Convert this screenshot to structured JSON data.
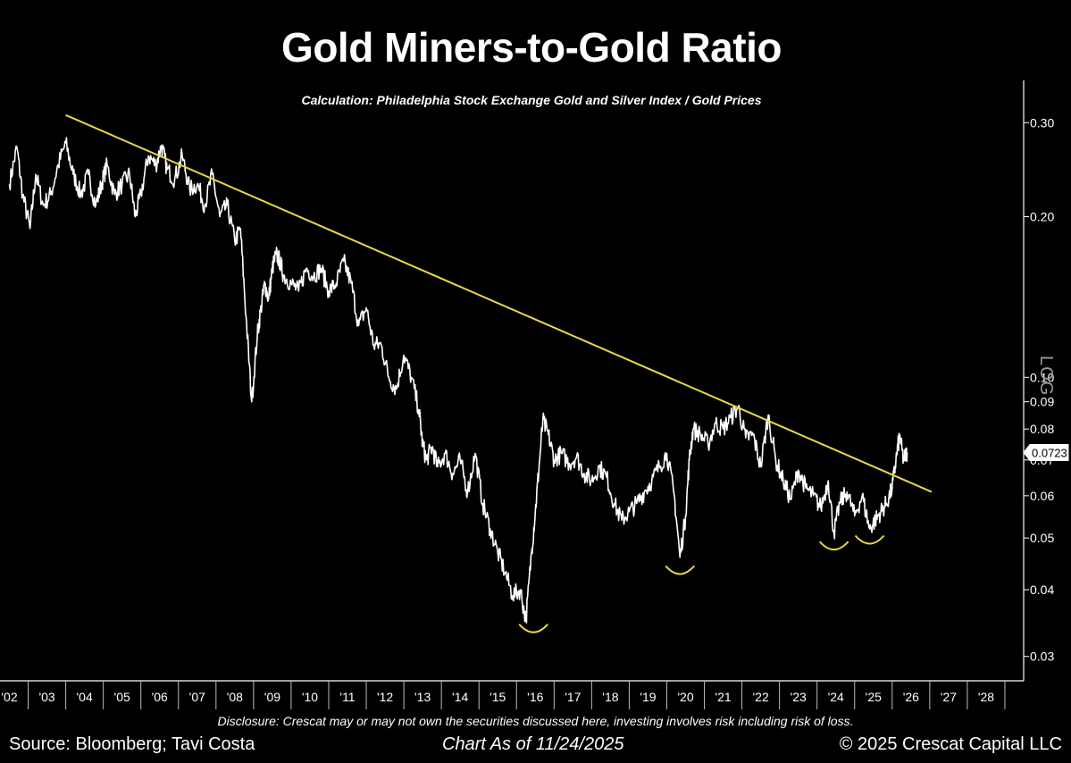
{
  "colors": {
    "background": "#000000",
    "series": "#ffffff",
    "trendline": "#e8d84a",
    "bottom_marks": "#e8d84a",
    "axis": "#ffffff"
  },
  "footer": {
    "disclosure": "Disclosure: Crescat may or may not own the securities discussed here, investing involves risk including risk of loss.",
    "source": "Source: Bloomberg; Tavi Costa",
    "as_of": "Chart As of 11/24/2025",
    "copyright": "© 2025 Crescat Capital LLC"
  },
  "chart_data": {
    "type": "line",
    "title": "Gold Miners-to-Gold Ratio",
    "subtitle": "Calculation: Philadelphia Stock Exchange Gold and Silver Index / Gold Prices",
    "y_scale": "log",
    "y_scale_label": "LOG",
    "y_axis_side": "right",
    "ylim": [
      0.027,
      0.36
    ],
    "xlim": [
      2001.75,
      2029.0
    ],
    "x_tick_labels": [
      "'02",
      "'03",
      "'04",
      "'05",
      "'06",
      "'07",
      "'08",
      "'09",
      "'10",
      "'11",
      "'12",
      "'13",
      "'14",
      "'15",
      "'16",
      "'17",
      "'18",
      "'19",
      "'20",
      "'21",
      "'22",
      "'23",
      "'24",
      "'25",
      "'26",
      "'27",
      "'28"
    ],
    "x_tick_years": [
      2002,
      2003,
      2004,
      2005,
      2006,
      2007,
      2008,
      2009,
      2010,
      2011,
      2012,
      2013,
      2014,
      2015,
      2016,
      2017,
      2018,
      2019,
      2020,
      2021,
      2022,
      2023,
      2024,
      2025,
      2026,
      2027,
      2028
    ],
    "y_ticks": [
      {
        "value": 0.3,
        "label": "0.30"
      },
      {
        "value": 0.2,
        "label": "0.20"
      },
      {
        "value": 0.1,
        "label": "0.10"
      },
      {
        "value": 0.09,
        "label": "0.09"
      },
      {
        "value": 0.08,
        "label": "0.08"
      },
      {
        "value": 0.07,
        "label": "0.07"
      },
      {
        "value": 0.06,
        "label": "0.06"
      },
      {
        "value": 0.05,
        "label": "0.05"
      },
      {
        "value": 0.04,
        "label": "0.04"
      },
      {
        "value": 0.03,
        "label": "0.03"
      }
    ],
    "last_value": {
      "x": 2025.9,
      "value": 0.0723,
      "label": "0.0723"
    },
    "trendline": {
      "start": {
        "x": 2003.5,
        "y": 0.31
      },
      "end": {
        "x": 2026.55,
        "y": 0.061
      }
    },
    "bottom_marks": [
      {
        "x": 2015.95,
        "y": 0.035
      },
      {
        "x": 2019.85,
        "y": 0.045
      },
      {
        "x": 2023.95,
        "y": 0.05
      },
      {
        "x": 2024.9,
        "y": 0.0513
      }
    ],
    "series": [
      {
        "x": [
          2002.0,
          2002.2,
          2002.35,
          2002.55,
          2002.7,
          2002.9,
          2003.1,
          2003.3,
          2003.5,
          2003.7,
          2003.9,
          2004.1,
          2004.3,
          2004.45,
          2004.6,
          2004.8,
          2005.0,
          2005.2,
          2005.35,
          2005.5,
          2005.7,
          2005.9,
          2006.05,
          2006.2,
          2006.4,
          2006.6,
          2006.8,
          2007.0,
          2007.2,
          2007.4,
          2007.6,
          2007.8,
          2008.0,
          2008.15,
          2008.3,
          2008.45,
          2008.6,
          2008.7,
          2008.8,
          2008.9,
          2009.0,
          2009.1,
          2009.2,
          2009.3,
          2009.5,
          2009.7,
          2009.9,
          2010.1,
          2010.3,
          2010.5,
          2010.7,
          2010.9,
          2011.1,
          2011.3,
          2011.5,
          2011.7,
          2011.9,
          2012.1,
          2012.3,
          2012.5,
          2012.7,
          2012.9,
          2013.0,
          2013.1,
          2013.25,
          2013.4,
          2013.6,
          2013.8,
          2014.0,
          2014.2,
          2014.4,
          2014.6,
          2014.8,
          2015.0,
          2015.2,
          2015.4,
          2015.6,
          2015.75,
          2015.9,
          2016.0,
          2016.1,
          2016.2,
          2016.35,
          2016.5,
          2016.7,
          2016.9,
          2017.1,
          2017.3,
          2017.5,
          2017.7,
          2017.9,
          2018.1,
          2018.3,
          2018.5,
          2018.7,
          2018.9,
          2019.1,
          2019.3,
          2019.5,
          2019.7,
          2019.85,
          2020.0,
          2020.1,
          2020.2,
          2020.4,
          2020.6,
          2020.8,
          2021.0,
          2021.2,
          2021.4,
          2021.6,
          2021.8,
          2022.0,
          2022.2,
          2022.4,
          2022.6,
          2022.8,
          2023.0,
          2023.2,
          2023.4,
          2023.6,
          2023.8,
          2023.95,
          2024.1,
          2024.3,
          2024.5,
          2024.7,
          2024.9,
          2025.05,
          2025.2,
          2025.35,
          2025.5,
          2025.6,
          2025.7,
          2025.8,
          2025.9
        ],
        "values": [
          0.23,
          0.27,
          0.22,
          0.19,
          0.24,
          0.21,
          0.22,
          0.25,
          0.275,
          0.24,
          0.22,
          0.24,
          0.21,
          0.23,
          0.25,
          0.22,
          0.23,
          0.24,
          0.2,
          0.22,
          0.26,
          0.25,
          0.272,
          0.245,
          0.235,
          0.26,
          0.225,
          0.23,
          0.21,
          0.24,
          0.2,
          0.21,
          0.18,
          0.19,
          0.13,
          0.09,
          0.12,
          0.135,
          0.15,
          0.14,
          0.16,
          0.17,
          0.165,
          0.155,
          0.15,
          0.145,
          0.16,
          0.155,
          0.16,
          0.145,
          0.15,
          0.165,
          0.15,
          0.125,
          0.135,
          0.115,
          0.115,
          0.1,
          0.095,
          0.11,
          0.1,
          0.087,
          0.075,
          0.07,
          0.074,
          0.068,
          0.072,
          0.066,
          0.07,
          0.061,
          0.072,
          0.058,
          0.052,
          0.047,
          0.043,
          0.039,
          0.04,
          0.035,
          0.047,
          0.056,
          0.068,
          0.083,
          0.078,
          0.07,
          0.072,
          0.069,
          0.071,
          0.066,
          0.064,
          0.068,
          0.065,
          0.058,
          0.054,
          0.056,
          0.058,
          0.061,
          0.064,
          0.068,
          0.072,
          0.06,
          0.046,
          0.055,
          0.07,
          0.08,
          0.078,
          0.075,
          0.082,
          0.08,
          0.084,
          0.088,
          0.077,
          0.078,
          0.068,
          0.085,
          0.07,
          0.064,
          0.059,
          0.067,
          0.062,
          0.06,
          0.057,
          0.064,
          0.051,
          0.058,
          0.061,
          0.055,
          0.06,
          0.052,
          0.054,
          0.056,
          0.058,
          0.062,
          0.07,
          0.078,
          0.07,
          0.0723
        ]
      }
    ]
  }
}
